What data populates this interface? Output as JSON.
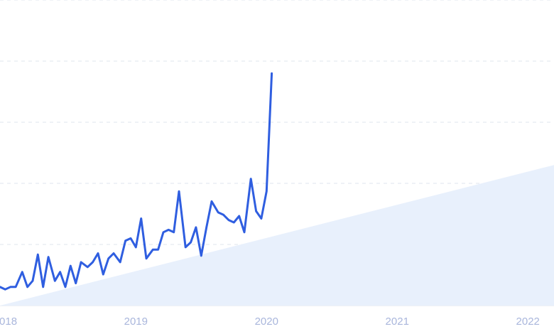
{
  "chart_data": {
    "type": "line",
    "title": "",
    "xlabel": "",
    "ylabel": "",
    "grid": true,
    "legend": "none",
    "ylim": [
      0,
      100
    ],
    "xlim": [
      2017.96,
      2022.2
    ],
    "x_ticks": [
      {
        "value": 2018,
        "label": "2018"
      },
      {
        "value": 2019,
        "label": "2019"
      },
      {
        "value": 2020,
        "label": "2020"
      },
      {
        "value": 2021,
        "label": "2021"
      },
      {
        "value": 2022,
        "label": "2022"
      }
    ],
    "y_gridlines": [
      20,
      40,
      60,
      80,
      100
    ],
    "colors": {
      "line": "#2f5ee0",
      "trend_fill": "#e8f0fc",
      "grid": "#dfe4ec",
      "tick_label": "#a9b6dc"
    },
    "series": [
      {
        "values": [
          [
            2017.96,
            6.1
          ],
          [
            2018.0,
            5.3
          ],
          [
            2018.04,
            6.1
          ],
          [
            2018.08,
            6.1
          ],
          [
            2018.13,
            11.0
          ],
          [
            2018.17,
            6.1
          ],
          [
            2018.21,
            8.1
          ],
          [
            2018.25,
            16.7
          ],
          [
            2018.29,
            6.1
          ],
          [
            2018.33,
            15.9
          ],
          [
            2018.38,
            8.1
          ],
          [
            2018.42,
            11.0
          ],
          [
            2018.46,
            6.1
          ],
          [
            2018.5,
            13.0
          ],
          [
            2018.54,
            7.3
          ],
          [
            2018.58,
            14.2
          ],
          [
            2018.63,
            12.6
          ],
          [
            2018.67,
            14.2
          ],
          [
            2018.71,
            17.1
          ],
          [
            2018.75,
            10.2
          ],
          [
            2018.79,
            15.4
          ],
          [
            2018.83,
            17.1
          ],
          [
            2018.88,
            14.2
          ],
          [
            2018.92,
            21.2
          ],
          [
            2018.96,
            22.0
          ],
          [
            2019.0,
            19.1
          ],
          [
            2019.04,
            28.5
          ],
          [
            2019.08,
            15.4
          ],
          [
            2019.13,
            18.3
          ],
          [
            2019.17,
            18.3
          ],
          [
            2019.21,
            24.0
          ],
          [
            2019.25,
            24.8
          ],
          [
            2019.29,
            24.0
          ],
          [
            2019.33,
            37.4
          ],
          [
            2019.38,
            19.1
          ],
          [
            2019.42,
            20.7
          ],
          [
            2019.46,
            25.6
          ],
          [
            2019.5,
            16.3
          ],
          [
            2019.54,
            25.6
          ],
          [
            2019.58,
            34.1
          ],
          [
            2019.63,
            30.5
          ],
          [
            2019.67,
            29.7
          ],
          [
            2019.71,
            28.0
          ],
          [
            2019.75,
            27.2
          ],
          [
            2019.79,
            29.3
          ],
          [
            2019.83,
            24.0
          ],
          [
            2019.88,
            41.5
          ],
          [
            2019.92,
            30.9
          ],
          [
            2019.96,
            28.5
          ],
          [
            2020.0,
            37.4
          ],
          [
            2020.04,
            76.0
          ]
        ]
      }
    ]
  }
}
